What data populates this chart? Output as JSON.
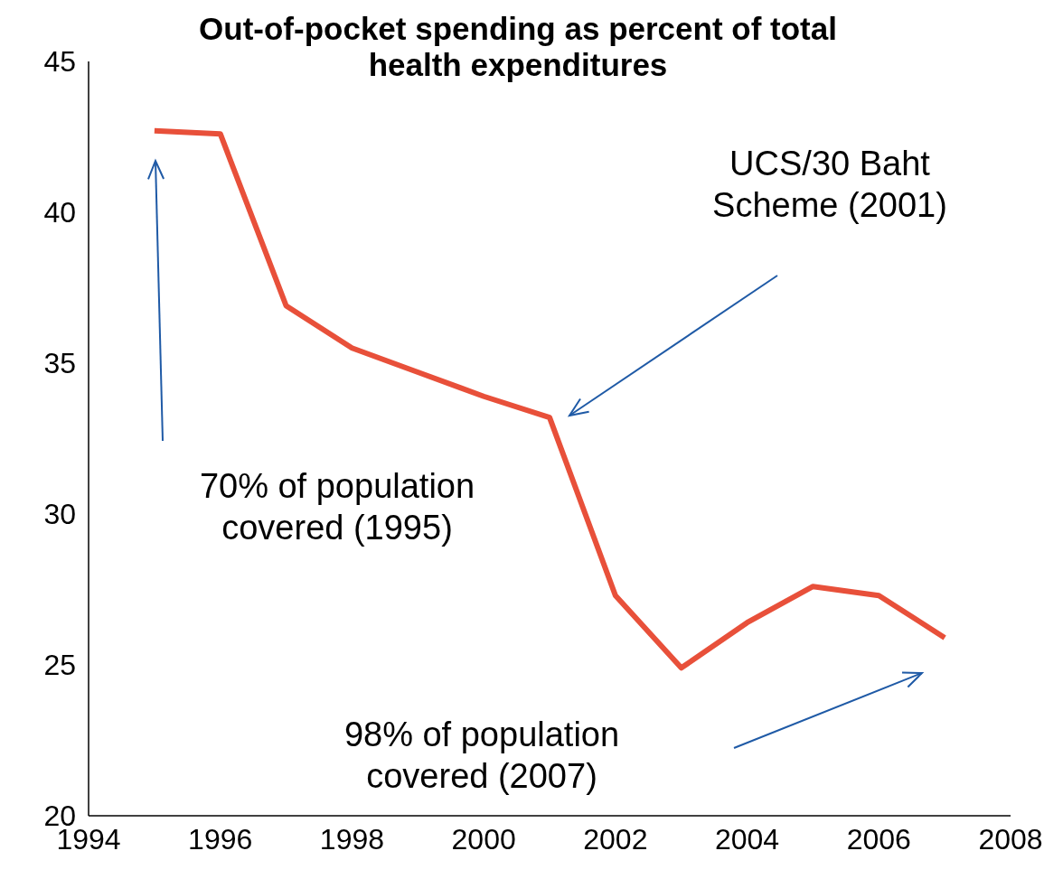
{
  "chart_data": {
    "type": "line",
    "title": "Out-of-pocket spending as percent of total health expenditures",
    "x": [
      1995,
      1996,
      1997,
      1998,
      1999,
      2000,
      2001,
      2002,
      2003,
      2004,
      2005,
      2006,
      2007
    ],
    "values": [
      42.7,
      42.6,
      36.9,
      35.5,
      34.7,
      33.9,
      33.2,
      27.3,
      24.9,
      26.4,
      27.6,
      27.3,
      25.9
    ],
    "color": "#e8503a",
    "marker": "none",
    "xlim": [
      1994,
      2008
    ],
    "xticks": [
      1994,
      1996,
      1998,
      2000,
      2002,
      2004,
      2006,
      2008
    ],
    "ylim": [
      20,
      45
    ],
    "yticks": [
      20,
      25,
      30,
      35,
      40,
      45
    ],
    "annotations": [
      "UCS/30 Baht\nScheme (2001)",
      "70% of population\ncovered (1995)",
      "98% of population\ncovered (2007)"
    ]
  }
}
